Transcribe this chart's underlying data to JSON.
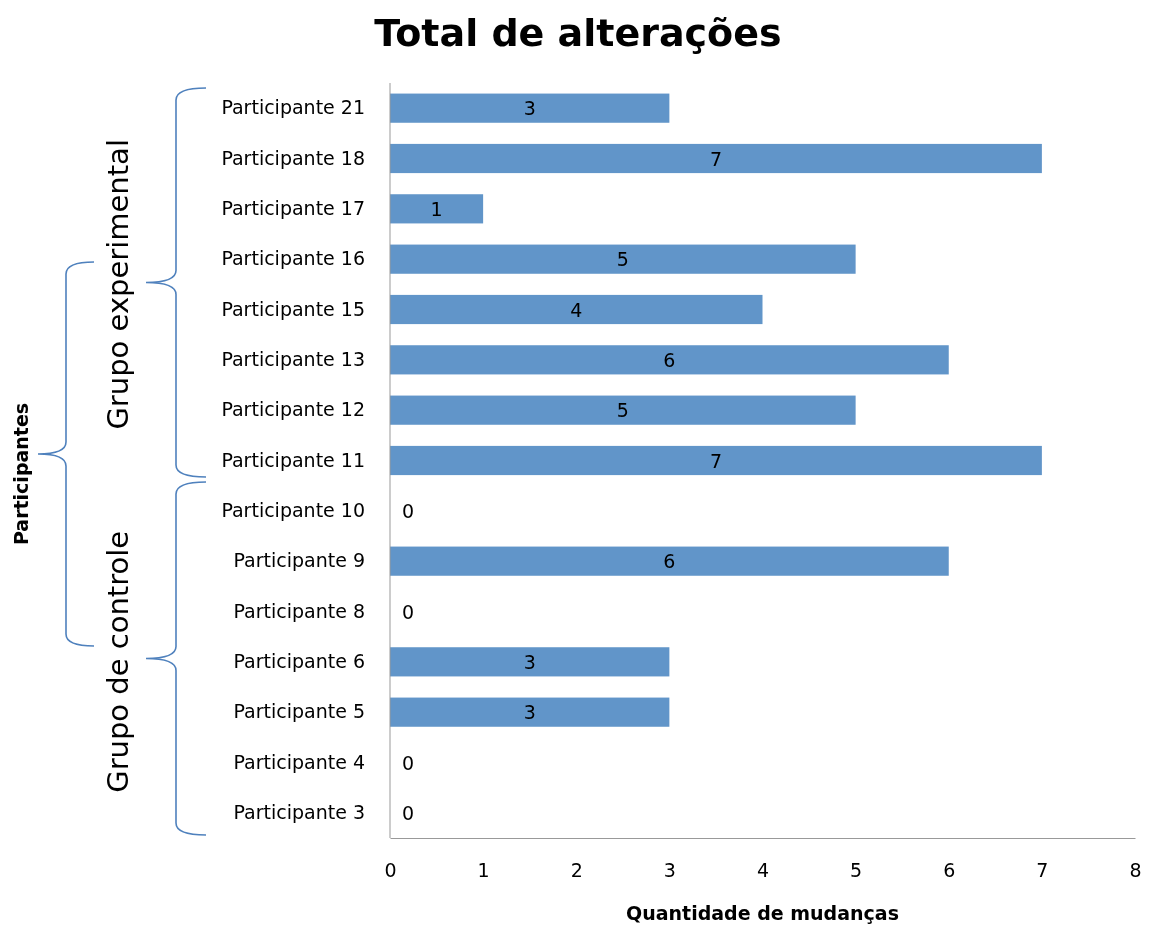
{
  "chart_data": {
    "type": "bar",
    "orientation": "horizontal",
    "title": "Total de alterações",
    "xlabel": "Quantidade de mudanças",
    "categories": [
      "Participante 21",
      "Participante 18",
      "Participante 17",
      "Participante 16",
      "Participante 15",
      "Participante 13",
      "Participante 12",
      "Participante 11",
      "Participante 10",
      "Participante 9",
      "Participante 8",
      "Participante 6",
      "Participante 5",
      "Participante 4",
      "Participante 3"
    ],
    "values": [
      3,
      7,
      1,
      5,
      4,
      6,
      5,
      7,
      0,
      6,
      0,
      3,
      3,
      0,
      0
    ],
    "color": "#6195c9",
    "xlim": [
      0,
      8
    ],
    "xticks": [
      0,
      1,
      2,
      3,
      4,
      5,
      6,
      7,
      8
    ],
    "grid": false,
    "data_labels": true,
    "annotations": [
      "Grupo experimental",
      "Grupo de controle",
      "Participantes"
    ]
  }
}
